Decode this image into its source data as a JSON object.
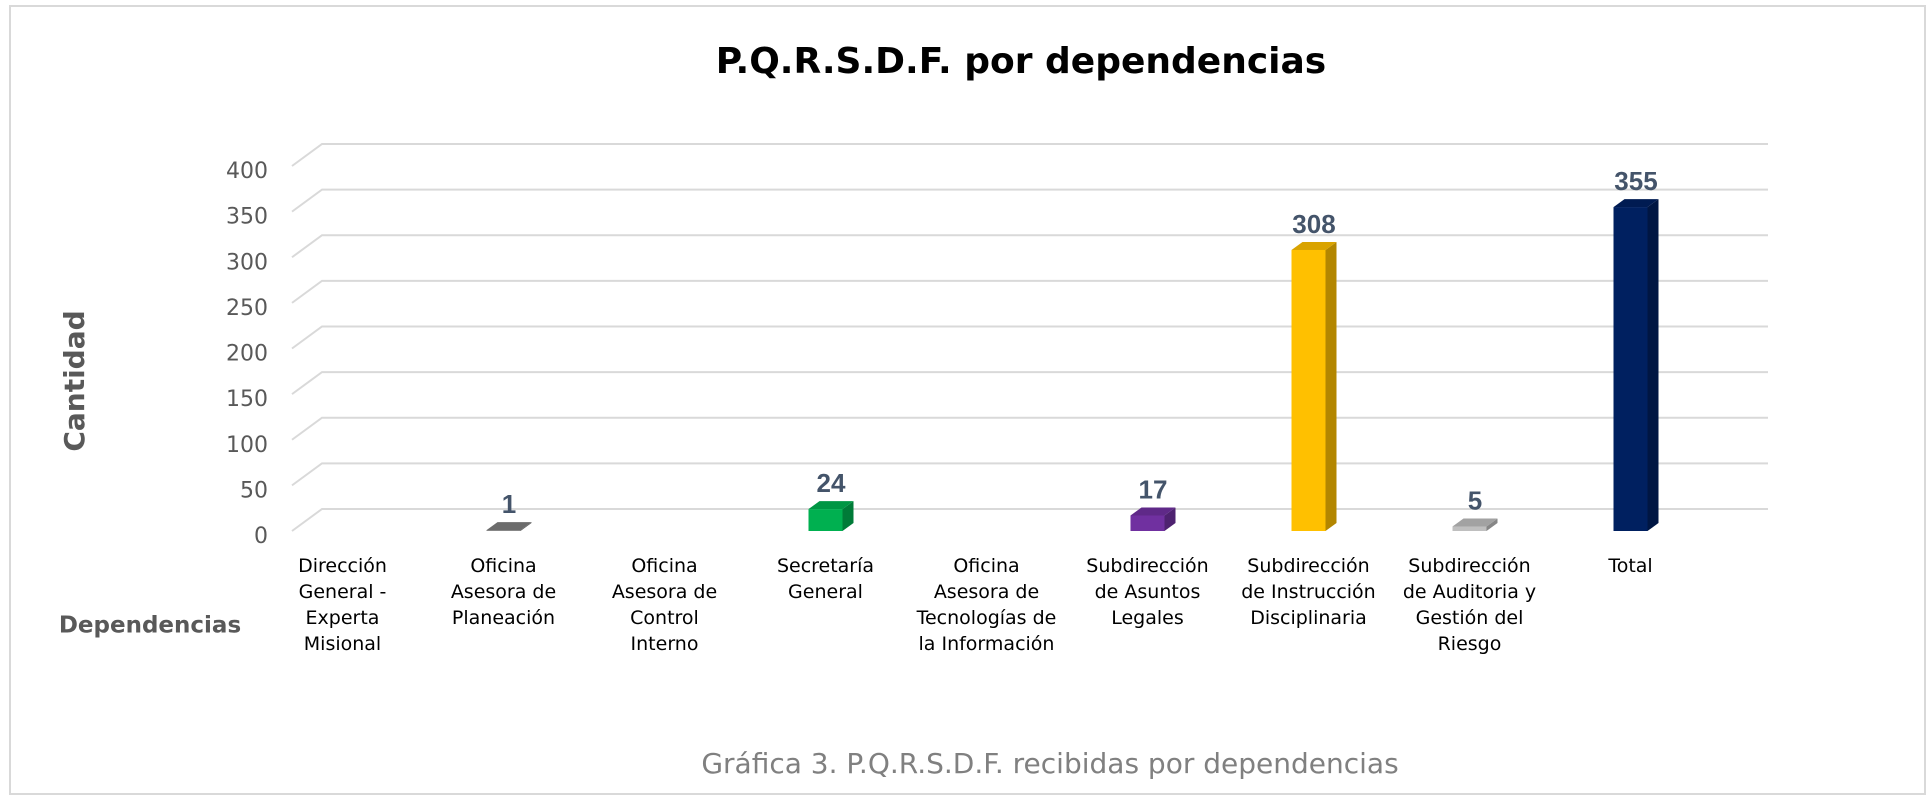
{
  "chart_data": {
    "type": "bar3d",
    "title": "P.Q.R.S.D.F. por dependencias",
    "y_label": "Cantidad",
    "x_label": "Dependencias",
    "caption": "Gráfica 3. P.Q.R.S.D.F. recibidas por dependencias",
    "categories": [
      "Dirección General - Experta Misional",
      "Oficina Asesora de Planeación",
      "Oficina Asesora de Control Interno",
      "Secretaría General",
      "Oficina Asesora de Tecnologías de la Información",
      "Subdirección de Asuntos Legales",
      "Subdirección de Instrucción Disciplinaria",
      "Subdirección de Auditoria y Gestión del Riesgo",
      "Total"
    ],
    "values": [
      null,
      1,
      null,
      24,
      null,
      17,
      308,
      5,
      355
    ],
    "colors": [
      "#7f7f7f",
      "#7f7f7f",
      "#7f7f7f",
      "#00b050",
      "#7f7f7f",
      "#7030a0",
      "#ffc000",
      "#bfbfbf",
      "#002060"
    ],
    "ylim": [
      0,
      400
    ],
    "yticks": [
      0,
      50,
      100,
      150,
      200,
      250,
      300,
      350,
      400
    ],
    "grid": true
  }
}
